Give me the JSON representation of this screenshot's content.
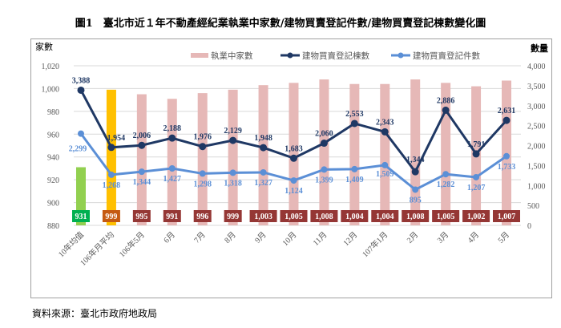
{
  "title": "圖1　臺北市近１年不動產經紀業執業中家數/建物買賣登記件數/建物買賣登記棟數變化圖",
  "source": "資料來源：臺北市政府地政局",
  "chart_data": {
    "type": "bar+line",
    "categories": [
      "10年均值",
      "106年月平均",
      "106年5月",
      "6月",
      "7月",
      "8月",
      "9月",
      "10月",
      "11月",
      "12月",
      "107年1月",
      "2月",
      "3月",
      "4月",
      "5月"
    ],
    "y_left": {
      "label": "家數",
      "range": [
        880,
        1020
      ],
      "ticks": [
        "880",
        "900",
        "920",
        "940",
        "960",
        "980",
        "1,000",
        "1,020"
      ]
    },
    "y_right": {
      "label": "數量",
      "range": [
        0,
        4000
      ],
      "ticks": [
        "0",
        "500",
        "1,000",
        "1,500",
        "2,000",
        "2,500",
        "3,000",
        "3,500",
        "4,000"
      ]
    },
    "grid": true,
    "legend_position": "top",
    "series": [
      {
        "name": "執業中家數",
        "type": "bar",
        "axis": "left",
        "color": "#e6b8b7",
        "values": [
          931,
          999,
          995,
          991,
          996,
          999,
          1003,
          1005,
          1008,
          1004,
          1004,
          1008,
          1005,
          1002,
          1007
        ],
        "labels": [
          "931",
          "999",
          "995",
          "991",
          "996",
          "999",
          "1,003",
          "1,005",
          "1,008",
          "1,004",
          "1,004",
          "1,008",
          "1,005",
          "1,002",
          "1,007"
        ],
        "special_colors": {
          "0": "#92d050",
          "1": "#ffc000"
        },
        "label_box_colors": {
          "0": "#00b050",
          "1": "#c55a11",
          "default": "#953735"
        }
      },
      {
        "name": "建物買賣登記棟數",
        "type": "line",
        "axis": "right",
        "color": "#1f3864",
        "values": [
          3388,
          1954,
          2006,
          2188,
          1976,
          2129,
          1948,
          1683,
          2060,
          2553,
          2343,
          1344,
          2886,
          1791,
          2631
        ],
        "labels": [
          "3,388",
          "1,954",
          "2,006",
          "2,188",
          "1,976",
          "2,129",
          "1,948",
          "1,683",
          "2,060",
          "2,553",
          "2,343",
          "1,344",
          "2,886",
          "1,791",
          "2,631"
        ]
      },
      {
        "name": "建物買賣登記件數",
        "type": "line",
        "axis": "right",
        "color": "#5b8fd6",
        "values": [
          2299,
          1268,
          1344,
          1427,
          1298,
          1318,
          1327,
          1124,
          1399,
          1409,
          1509,
          895,
          1282,
          1207,
          1733
        ],
        "labels": [
          "2,299",
          "1,268",
          "1,344",
          "1,427",
          "1,298",
          "1,318",
          "1,327",
          "1,124",
          "1,399",
          "1,409",
          "1,509",
          "895",
          "1,282",
          "1,207",
          "1,733"
        ]
      }
    ]
  }
}
